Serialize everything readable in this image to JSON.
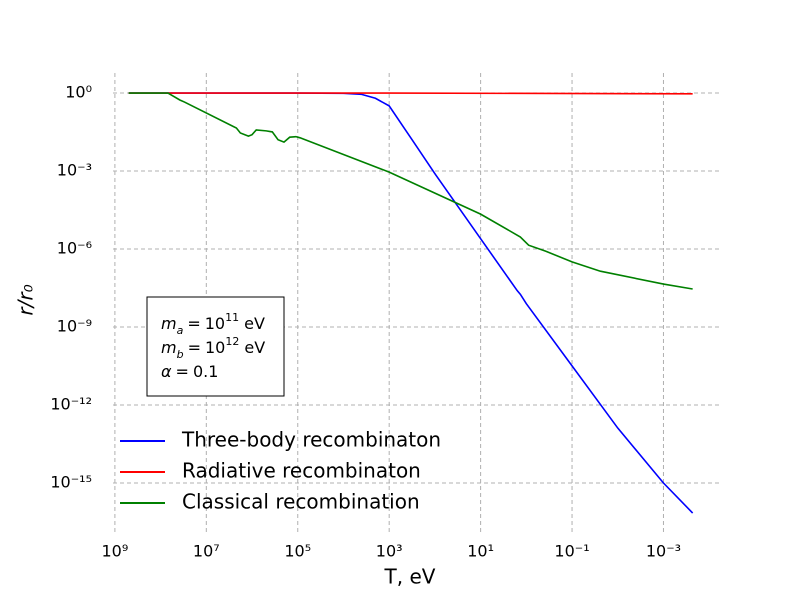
{
  "chart_data": {
    "type": "line",
    "xlabel": "T, eV",
    "ylabel": "r/r₀",
    "xscale": "log",
    "yscale": "log",
    "xlim": [
      1100000000.0,
      5.8e-05
    ],
    "ylim": [
      1e-17,
      5.9
    ],
    "xticks": [
      {
        "value": 1000000000.0,
        "label": "10⁹"
      },
      {
        "value": 10000000.0,
        "label": "10⁷"
      },
      {
        "value": 100000.0,
        "label": "10⁵"
      },
      {
        "value": 1000.0,
        "label": "10³"
      },
      {
        "value": 10,
        "label": "10¹"
      },
      {
        "value": 0.1,
        "label": "10⁻¹"
      },
      {
        "value": 0.001,
        "label": "10⁻³"
      }
    ],
    "yticks": [
      {
        "value": 1,
        "label": "10⁰"
      },
      {
        "value": 0.001,
        "label": "10⁻³"
      },
      {
        "value": 1e-06,
        "label": "10⁻⁶"
      },
      {
        "value": 1e-09,
        "label": "10⁻⁹"
      },
      {
        "value": 1e-12,
        "label": "10⁻¹²"
      },
      {
        "value": 1e-15,
        "label": "10⁻¹⁵"
      }
    ],
    "grid": true,
    "legend": "lower left",
    "series": [
      {
        "name": "Three-body recombinaton",
        "color": "#0000ff",
        "x": [
          500000000.0,
          100000.0,
          10000.0,
          4000.0,
          2000.0,
          1000.0,
          316,
          100,
          10,
          1.58,
          1.35,
          1,
          0.1,
          0.01,
          0.001,
          0.00023
        ],
        "values": [
          1,
          1,
          0.98,
          0.89,
          0.63,
          0.32,
          0.016,
          0.00079,
          2.5e-06,
          2.5e-08,
          1.8e-08,
          7.9e-09,
          3.2e-11,
          1.3e-13,
          1e-15,
          7e-17
        ]
      },
      {
        "name": "Radiative recombinaton",
        "color": "#ff0000",
        "x": [
          500000000.0,
          1000.0,
          0.00023
        ],
        "values": [
          1,
          1,
          0.93
        ]
      },
      {
        "name": "Classical recombination",
        "color": "#008000",
        "x": [
          500000000.0,
          69000000.0,
          38000000.0,
          30000000.0,
          2200000.0,
          1800000.0,
          1200000.0,
          1000000.0,
          810000.0,
          490000.0,
          360000.0,
          270000.0,
          200000.0,
          150000.0,
          110000.0,
          89000.0,
          1000.0,
          10,
          1.35,
          0.89,
          0.38,
          0.1,
          0.024,
          0.001,
          0.00023
        ],
        "values": [
          1,
          1,
          0.54,
          0.45,
          0.045,
          0.029,
          0.022,
          0.025,
          0.038,
          0.035,
          0.032,
          0.016,
          0.013,
          0.02,
          0.021,
          0.019,
          0.00091,
          2.2e-05,
          2.9e-06,
          1.4e-06,
          8.3e-07,
          3.2e-07,
          1.4e-07,
          4.5e-08,
          2.9e-08
        ]
      }
    ],
    "annotation": [
      {
        "var": "m",
        "sub": "a",
        "op": "=",
        "value": "10",
        "exp": "11",
        "unit": "eV"
      },
      {
        "var": "m",
        "sub": "b",
        "op": "=",
        "value": "10",
        "exp": "12",
        "unit": "eV"
      },
      {
        "var": "α",
        "op": "=",
        "value": "0.1"
      }
    ]
  }
}
